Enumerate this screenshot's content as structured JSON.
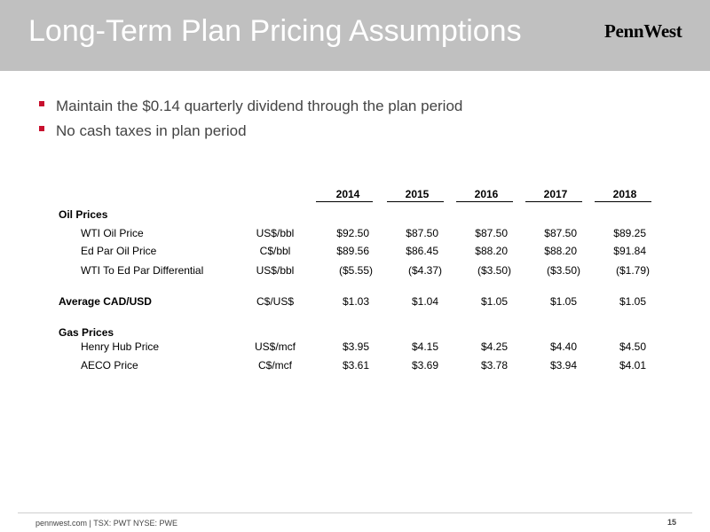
{
  "header": {
    "title": "Long-Term Plan Pricing Assumptions",
    "logo": "PennWest"
  },
  "bullets": [
    "Maintain the $0.14 quarterly dividend through the plan period",
    "No cash taxes in plan period"
  ],
  "table": {
    "years": [
      "2014",
      "2015",
      "2016",
      "2017",
      "2018"
    ],
    "oil_section": "Oil Prices",
    "wti": {
      "label": "WTI Oil Price",
      "unit": "US$/bbl",
      "values": [
        "$92.50",
        "$87.50",
        "$87.50",
        "$87.50",
        "$89.25"
      ]
    },
    "edpar": {
      "label": "Ed Par Oil Price",
      "unit": "C$/bbl",
      "values": [
        "$89.56",
        "$86.45",
        "$88.20",
        "$88.20",
        "$91.84"
      ]
    },
    "diff": {
      "label": "WTI To Ed Par Differential",
      "unit": "US$/bbl",
      "values": [
        "($5.55)",
        "($4.37)",
        "($3.50)",
        "($3.50)",
        "($1.79)"
      ]
    },
    "cad": {
      "label": "Average CAD/USD",
      "unit": "C$/US$",
      "values": [
        "$1.03",
        "$1.04",
        "$1.05",
        "$1.05",
        "$1.05"
      ]
    },
    "gas_section": "Gas Prices",
    "henry": {
      "label": "Henry Hub Price",
      "unit": "US$/mcf",
      "values": [
        "$3.95",
        "$4.15",
        "$4.25",
        "$4.40",
        "$4.50"
      ]
    },
    "aeco": {
      "label": "AECO Price",
      "unit": "C$/mcf",
      "values": [
        "$3.61",
        "$3.69",
        "$3.78",
        "$3.94",
        "$4.01"
      ]
    }
  },
  "footer": {
    "text": "pennwest.com | TSX: PWT  NYSE: PWE",
    "page": "15"
  }
}
